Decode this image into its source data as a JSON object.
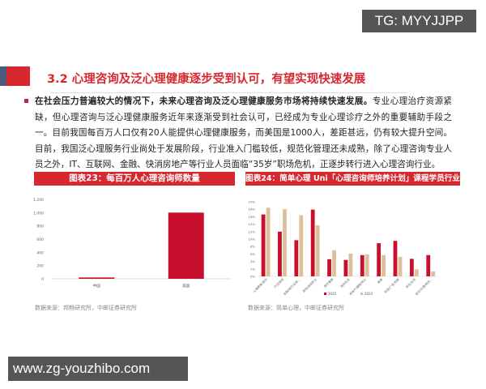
{
  "watermarks": {
    "top": "TG: MYYJJPP",
    "bottom": "www.zg-youzhibo.com"
  },
  "section": {
    "title": "3.2 心理咨询及泛心理健康逐步受到认可，有望实现快速发展",
    "bullet_bold": "在社会压力普遍较大的情况下，未来心理咨询及泛心理健康服务市场将持续快速发展。",
    "bullet_text": "专业心理治疗资源紧缺，但心理咨询与泛心理健康服务近年来逐渐受到社会认可，已经成为专业心理诊疗之外的重要辅助手段之一。目前我国每百万人口仅有20人能提供心理健康服务，而美国是1000人，差距甚远，仍有较大提升空间。目前，我国泛心理服务行业尚处于发展阶段，行业准入门槛较低，规范化管理还未成熟，除了心理咨询专业人员之外，IT、互联网、金融、快消房地产等行业人员面临“35岁”职场危机，正逐步转行进入心理咨询行业。"
  },
  "colors": {
    "accent": "#d7282f",
    "series_a": "#c8102e",
    "series_b": "#dcc09a"
  },
  "chart_data": [
    {
      "type": "bar",
      "title": "图表23：每百万人心理咨询师数量",
      "categories": [
        "中国",
        "美国"
      ],
      "values": [
        20,
        1000
      ],
      "ylim": [
        0,
        1200
      ],
      "yticks": [
        "0",
        "200",
        "400",
        "600",
        "800",
        "1,000",
        "1,200"
      ],
      "source": "数据来源：邦畅研究所，中邮证券研究所"
    },
    {
      "type": "bar",
      "title": "图表24：简单心理 Uni「心理咨询师培养计划」课程学员行业分布",
      "categories": [
        "心理教育/培训",
        "IT/互联网",
        "金融/银行/证券…",
        "其他/自由职业",
        "医疗健康",
        "政府机关",
        "房地产/建筑/物业",
        "教育",
        "制造/广告/传媒",
        "学生/在读",
        "航空/交通/物流…"
      ],
      "series": [
        {
          "name": "2022",
          "values": [
            16.6,
            12.0,
            9.7,
            17.9,
            4.6,
            4.4,
            5.7,
            8.9,
            9.5,
            4.7,
            5.7
          ]
        },
        {
          "name": "2023",
          "values": [
            18.4,
            18.0,
            16.4,
            13.7,
            7.0,
            6.1,
            5.9,
            5.7,
            5.2,
            1.9,
            1.3
          ]
        }
      ],
      "ylim": [
        0,
        20
      ],
      "yticks": [
        "0%",
        "2%",
        "4%",
        "6%",
        "8%",
        "10%",
        "12%",
        "14%",
        "16%",
        "18%",
        "20%"
      ],
      "legend": "bottom",
      "source": "数据来源：简单心理，中邮证券研究所"
    }
  ]
}
